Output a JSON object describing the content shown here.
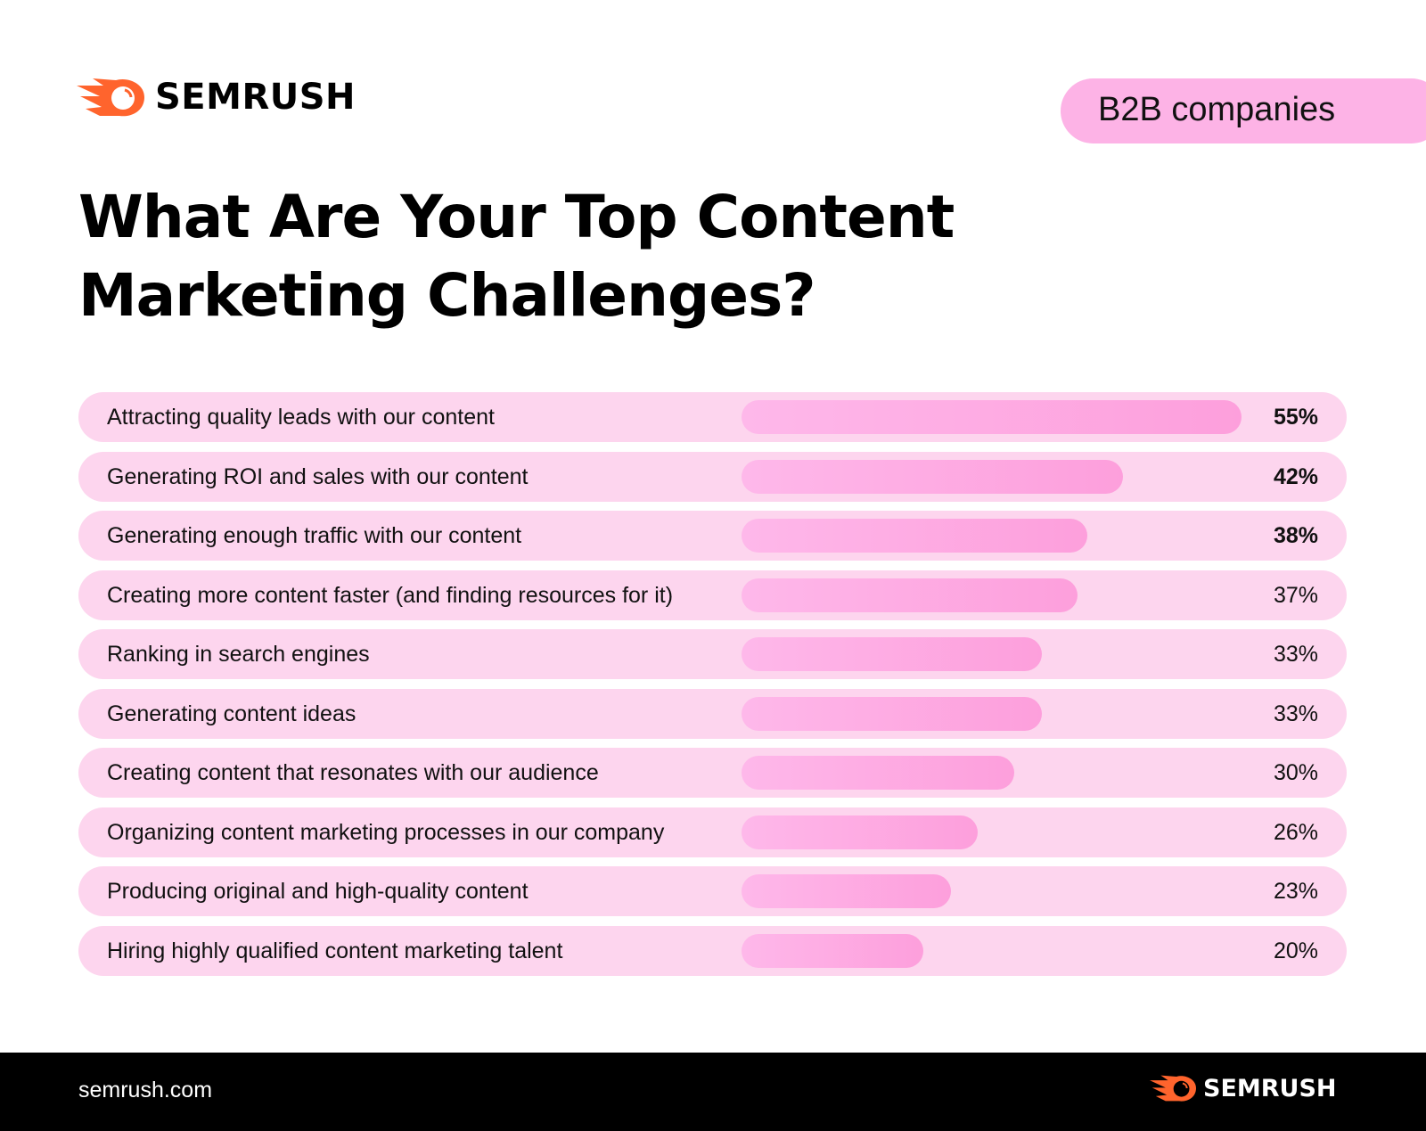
{
  "brand": {
    "name": "SEMRUSH",
    "logo_color": "#ff642d"
  },
  "badge": {
    "label": "B2B companies",
    "color": "#fdb3e6"
  },
  "title_lines": [
    "What Are Your Top Content",
    "Marketing Challenges?"
  ],
  "footer": {
    "site": "semrush.com",
    "brand": "SEMRUSH"
  },
  "chart_data": {
    "type": "bar",
    "orientation": "horizontal",
    "categories": [
      "Attracting quality leads with our content",
      "Generating ROI and sales with our content",
      "Generating enough traffic with our content",
      "Creating more content faster (and finding resources for it)",
      "Ranking in search engines",
      "Generating content ideas",
      "Creating content that resonates with our audience",
      "Organizing content marketing processes in our company",
      "Producing original and high-quality content",
      "Hiring highly qualified content marketing talent"
    ],
    "values": [
      55,
      42,
      38,
      37,
      33,
      33,
      30,
      26,
      23,
      20
    ],
    "value_labels": [
      "55%",
      "42%",
      "38%",
      "37%",
      "33%",
      "33%",
      "30%",
      "26%",
      "23%",
      "20%"
    ],
    "unit": "%",
    "bar_color": "#fdaadf",
    "track_color": "#fdd5ee"
  }
}
